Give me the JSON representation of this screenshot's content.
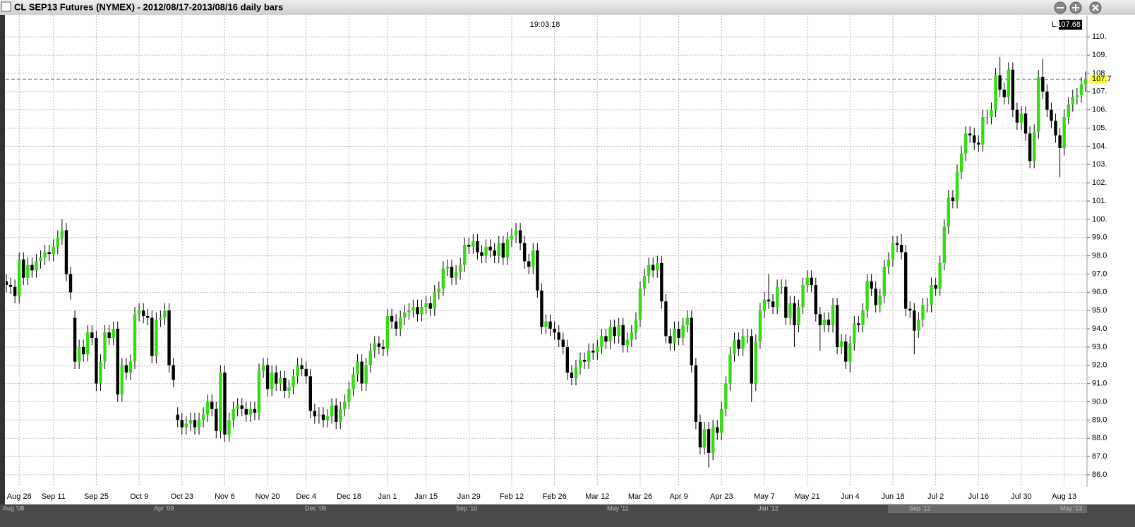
{
  "window_title": "CL SEP13 Futures (NYMEX) - 2012/08/17-2013/08/16 daily bars",
  "clock": "19:03:18",
  "last_prefix": "L:",
  "navigator_labels": [
    "Aug '08",
    "Apr '09",
    "Dec '09",
    "Sep '10",
    "May '11",
    "Jan '12",
    "Sep '12",
    "May '13"
  ],
  "chart_data": {
    "type": "candlestick",
    "up_color": "#33dd11",
    "down_color": "#000000",
    "grid": true,
    "last_value": 107.68,
    "last_tag": "107.7",
    "ylim": [
      85.34,
      111.17
    ],
    "yticks": [
      {
        "value": 86,
        "label": "86.0"
      },
      {
        "value": 87,
        "label": "87.0"
      },
      {
        "value": 88,
        "label": "88.0"
      },
      {
        "value": 89,
        "label": "89.0"
      },
      {
        "value": 90,
        "label": "90.0"
      },
      {
        "value": 91,
        "label": "91.0"
      },
      {
        "value": 92,
        "label": "92.0"
      },
      {
        "value": 93,
        "label": "93.0"
      },
      {
        "value": 94,
        "label": "94.0"
      },
      {
        "value": 95,
        "label": "95.0"
      },
      {
        "value": 96,
        "label": "96.0"
      },
      {
        "value": 97,
        "label": "97.0"
      },
      {
        "value": 98,
        "label": "98.0"
      },
      {
        "value": 99,
        "label": "99.0"
      },
      {
        "value": 100,
        "label": "100."
      },
      {
        "value": 101,
        "label": "101."
      },
      {
        "value": 102,
        "label": "102."
      },
      {
        "value": 103,
        "label": "103."
      },
      {
        "value": 104,
        "label": "104."
      },
      {
        "value": 105,
        "label": "105."
      },
      {
        "value": 106,
        "label": "106."
      },
      {
        "value": 107,
        "label": "107."
      },
      {
        "value": 108,
        "label": "108."
      },
      {
        "value": 109,
        "label": "109."
      },
      {
        "value": 110,
        "label": "110."
      }
    ],
    "categories": [
      null,
      null,
      null,
      "Aug 28",
      null,
      null,
      null,
      null,
      null,
      null,
      null,
      "Sep 11",
      null,
      null,
      null,
      null,
      null,
      null,
      null,
      null,
      null,
      "Sep 25",
      null,
      null,
      null,
      null,
      null,
      null,
      null,
      null,
      null,
      "Oct 9",
      null,
      null,
      null,
      null,
      null,
      null,
      null,
      null,
      null,
      "Oct 23",
      null,
      null,
      null,
      null,
      null,
      null,
      null,
      null,
      null,
      "Nov 6",
      null,
      null,
      null,
      null,
      null,
      null,
      null,
      null,
      null,
      "Nov 20",
      null,
      null,
      null,
      null,
      null,
      null,
      null,
      null,
      "Dec 4",
      null,
      null,
      null,
      null,
      null,
      null,
      null,
      null,
      null,
      "Dec 18",
      null,
      null,
      null,
      null,
      null,
      null,
      null,
      null,
      "Jan 1",
      null,
      null,
      null,
      null,
      null,
      null,
      null,
      null,
      "Jan 15",
      null,
      null,
      null,
      null,
      null,
      null,
      null,
      null,
      null,
      "Jan 29",
      null,
      null,
      null,
      null,
      null,
      null,
      null,
      null,
      null,
      "Feb 12",
      null,
      null,
      null,
      null,
      null,
      null,
      null,
      null,
      null,
      "Feb 26",
      null,
      null,
      null,
      null,
      null,
      null,
      null,
      null,
      null,
      "Mar 12",
      null,
      null,
      null,
      null,
      null,
      null,
      null,
      null,
      null,
      "Mar 26",
      null,
      null,
      null,
      null,
      null,
      null,
      null,
      null,
      "Apr 9",
      null,
      null,
      null,
      null,
      null,
      null,
      null,
      null,
      null,
      "Apr 23",
      null,
      null,
      null,
      null,
      null,
      null,
      null,
      null,
      null,
      "May 7",
      null,
      null,
      null,
      null,
      null,
      null,
      null,
      null,
      null,
      "May 21",
      null,
      null,
      null,
      null,
      null,
      null,
      null,
      null,
      null,
      "Jun 4",
      null,
      null,
      null,
      null,
      null,
      null,
      null,
      null,
      null,
      "Jun 18",
      null,
      null,
      null,
      null,
      null,
      null,
      null,
      null,
      null,
      "Jul 2",
      null,
      null,
      null,
      null,
      null,
      null,
      null,
      null,
      null,
      "Jul 16",
      null,
      null,
      null,
      null,
      null,
      null,
      null,
      null,
      null,
      "Jul 30",
      null,
      null,
      null,
      null,
      null,
      null,
      null,
      null,
      null,
      "Aug 13",
      null,
      null,
      null,
      null,
      null
    ],
    "open": [
      96.6,
      96.4,
      96.3,
      95.8,
      97.8,
      96.8,
      97.5,
      97.2,
      97.7,
      97.9,
      98.2,
      98.1,
      98.5,
      99.0,
      99.4,
      97.0,
      94.6,
      92.2,
      93.0,
      92.6,
      93.8,
      93.5,
      91.0,
      92.2,
      93.8,
      93.5,
      94.0,
      90.4,
      92.0,
      91.6,
      92.2,
      94.8,
      95.0,
      94.7,
      94.6,
      92.5,
      94.5,
      94.6,
      95.0,
      92.0,
      89.3,
      89.0,
      88.6,
      88.8,
      89.0,
      88.6,
      89.0,
      89.3,
      90.0,
      89.6,
      88.4,
      91.6,
      88.2,
      89.0,
      89.6,
      89.8,
      89.6,
      89.3,
      89.6,
      89.4,
      91.7,
      92.0,
      90.7,
      91.6,
      91.0,
      91.3,
      90.6,
      90.8,
      91.4,
      92.0,
      91.8,
      91.4,
      89.5,
      89.2,
      89.3,
      89.0,
      89.2,
      89.8,
      88.9,
      89.6,
      90.0,
      90.7,
      91.5,
      92.2,
      91.0,
      92.0,
      92.8,
      93.2,
      93.0,
      92.9,
      94.7,
      94.4,
      94.0,
      94.6,
      94.9,
      95.0,
      95.2,
      94.8,
      95.2,
      95.4,
      95.1,
      96.0,
      96.2,
      97.3,
      97.4,
      96.8,
      97.1,
      97.5,
      98.6,
      98.5,
      98.8,
      98.2,
      98.0,
      98.5,
      98.3,
      98.0,
      98.7,
      97.9,
      98.9,
      99.1,
      99.4,
      98.7,
      97.7,
      97.4,
      98.3,
      96.1,
      94.1,
      94.4,
      94.0,
      93.8,
      93.4,
      93.0,
      91.6,
      91.3,
      91.9,
      92.3,
      92.2,
      92.8,
      92.7,
      93.0,
      93.6,
      93.3,
      94.1,
      93.6,
      94.2,
      93.1,
      93.4,
      93.8,
      94.5,
      96.2,
      96.9,
      97.5,
      97.2,
      97.6,
      95.5,
      93.6,
      93.2,
      94.0,
      93.5,
      94.2,
      94.6,
      92.0,
      88.9,
      87.5,
      88.5,
      87.2,
      88.6,
      88.3,
      89.6,
      91.0,
      92.6,
      93.4,
      92.9,
      93.6,
      93.6,
      91.0,
      93.3,
      95.0,
      95.6,
      95.5,
      95.2,
      96.3,
      96.3,
      94.6,
      95.4,
      94.2,
      95.2,
      96.4,
      96.8,
      96.4,
      94.8,
      94.2,
      94.5,
      94.2,
      95.3,
      93.0,
      93.3,
      92.2,
      93.2,
      94.3,
      94.2,
      95.0,
      96.6,
      96.2,
      95.3,
      95.8,
      97.4,
      97.8,
      98.7,
      98.6,
      98.2,
      95.1,
      95.0,
      93.9,
      94.5,
      95.3,
      95.3,
      96.4,
      96.2,
      97.6,
      99.6,
      101.2,
      101.0,
      102.6,
      103.6,
      104.7,
      104.6,
      104.2,
      104.1,
      105.6,
      105.6,
      106.0,
      107.9,
      107.1,
      106.7,
      108.2,
      106.0,
      105.3,
      105.8,
      104.7,
      103.2,
      104.8,
      107.8,
      107.0,
      106.0,
      105.4,
      104.6,
      103.9,
      105.6,
      106.3,
      106.7,
      106.8,
      107.4
    ],
    "high": [
      97.0,
      96.8,
      96.7,
      98.2,
      98.2,
      97.9,
      97.9,
      98.1,
      98.3,
      98.6,
      98.6,
      98.9,
      99.4,
      100.0,
      99.8,
      97.4,
      95.0,
      93.4,
      93.4,
      94.2,
      94.2,
      93.9,
      92.6,
      94.2,
      94.2,
      94.4,
      94.4,
      92.4,
      92.4,
      92.6,
      95.2,
      95.4,
      95.4,
      95.1,
      95.0,
      94.9,
      95.0,
      95.4,
      95.4,
      92.4,
      89.7,
      89.4,
      89.2,
      89.4,
      89.4,
      89.4,
      89.7,
      90.4,
      90.4,
      90.0,
      92.0,
      92.0,
      89.4,
      90.0,
      90.2,
      90.2,
      90.0,
      90.0,
      90.0,
      92.1,
      92.4,
      92.4,
      92.0,
      92.0,
      91.7,
      91.7,
      91.2,
      91.8,
      92.4,
      92.4,
      92.2,
      91.8,
      89.9,
      89.7,
      89.7,
      89.6,
      90.2,
      90.2,
      90.0,
      90.4,
      91.1,
      91.9,
      92.6,
      92.6,
      92.4,
      93.2,
      93.6,
      93.6,
      93.4,
      95.1,
      95.1,
      94.8,
      95.0,
      95.3,
      95.4,
      95.6,
      95.6,
      95.6,
      95.8,
      95.8,
      96.4,
      96.6,
      97.7,
      97.8,
      97.8,
      97.5,
      97.9,
      99.0,
      99.0,
      99.2,
      99.2,
      98.6,
      98.9,
      98.9,
      98.7,
      99.1,
      99.1,
      99.3,
      99.5,
      99.8,
      99.8,
      99.1,
      98.1,
      98.7,
      98.7,
      96.5,
      94.8,
      94.8,
      94.4,
      94.2,
      93.8,
      93.4,
      92.0,
      92.3,
      92.7,
      92.7,
      93.2,
      93.2,
      93.4,
      94.0,
      94.0,
      94.5,
      94.5,
      94.6,
      94.6,
      93.8,
      94.2,
      94.9,
      96.6,
      97.3,
      97.9,
      97.9,
      98.0,
      98.0,
      95.9,
      94.0,
      94.4,
      94.4,
      94.6,
      95.0,
      95.0,
      92.4,
      89.3,
      88.9,
      88.9,
      89.0,
      89.0,
      90.0,
      91.4,
      93.0,
      93.8,
      93.8,
      94.0,
      94.0,
      94.0,
      93.7,
      95.4,
      96.0,
      97.0,
      95.9,
      96.7,
      96.7,
      96.7,
      95.8,
      95.8,
      95.6,
      96.8,
      97.2,
      97.2,
      96.8,
      95.2,
      94.9,
      94.9,
      95.7,
      95.7,
      93.7,
      93.7,
      93.6,
      94.7,
      94.7,
      95.4,
      97.0,
      97.0,
      96.6,
      96.2,
      97.8,
      98.2,
      99.1,
      99.1,
      99.2,
      98.6,
      95.5,
      95.4,
      94.9,
      95.7,
      95.7,
      96.8,
      96.8,
      98.0,
      100.0,
      101.6,
      101.6,
      103.0,
      104.0,
      105.1,
      105.1,
      105.0,
      104.6,
      106.0,
      106.0,
      106.4,
      108.3,
      108.9,
      107.5,
      108.6,
      108.6,
      106.4,
      106.2,
      106.2,
      105.1,
      105.2,
      108.2,
      108.8,
      107.4,
      106.4,
      105.8,
      105.0,
      106.0,
      106.7,
      107.1,
      107.2,
      107.8,
      108.1
    ],
    "low": [
      96.0,
      95.9,
      95.4,
      95.4,
      96.4,
      96.4,
      96.8,
      96.8,
      97.3,
      97.5,
      97.7,
      97.7,
      98.1,
      98.6,
      96.6,
      95.6,
      91.8,
      91.8,
      92.2,
      92.2,
      93.1,
      90.6,
      90.6,
      91.8,
      93.1,
      93.1,
      90.0,
      90.0,
      91.2,
      91.2,
      91.8,
      94.4,
      94.3,
      94.2,
      92.1,
      92.1,
      94.1,
      94.2,
      91.6,
      90.8,
      88.6,
      88.2,
      88.2,
      88.4,
      88.2,
      88.2,
      88.6,
      88.9,
      89.2,
      88.0,
      88.0,
      87.8,
      87.8,
      88.6,
      89.2,
      89.2,
      88.9,
      88.9,
      89.0,
      89.0,
      91.3,
      90.3,
      90.3,
      90.6,
      90.6,
      90.2,
      90.2,
      90.4,
      91.0,
      91.4,
      91.0,
      89.1,
      88.8,
      88.8,
      88.6,
      88.6,
      88.8,
      88.5,
      88.5,
      89.2,
      89.6,
      90.3,
      91.1,
      90.6,
      90.6,
      91.6,
      92.4,
      92.6,
      92.5,
      92.5,
      94.0,
      93.6,
      93.6,
      94.2,
      94.5,
      94.6,
      94.4,
      94.4,
      94.8,
      94.7,
      94.7,
      95.6,
      95.8,
      96.9,
      96.4,
      96.4,
      96.7,
      97.1,
      98.1,
      98.1,
      97.8,
      97.6,
      97.6,
      97.9,
      97.6,
      97.6,
      97.5,
      97.5,
      98.5,
      98.7,
      98.3,
      97.3,
      97.0,
      97.0,
      95.7,
      93.7,
      93.7,
      93.6,
      93.4,
      93.0,
      92.6,
      91.2,
      90.9,
      90.9,
      91.5,
      91.8,
      91.8,
      92.3,
      92.3,
      92.6,
      92.9,
      92.9,
      93.2,
      93.2,
      92.7,
      92.7,
      93.0,
      93.4,
      94.1,
      95.8,
      96.5,
      96.8,
      96.8,
      95.1,
      93.2,
      92.8,
      92.8,
      93.1,
      93.1,
      93.8,
      91.6,
      88.5,
      87.1,
      87.1,
      86.4,
      86.8,
      87.9,
      87.9,
      89.2,
      90.6,
      92.2,
      92.5,
      92.5,
      93.2,
      90.0,
      90.6,
      92.9,
      94.6,
      95.1,
      94.8,
      94.8,
      95.9,
      94.2,
      94.2,
      93.0,
      93.8,
      94.8,
      96.0,
      96.0,
      94.4,
      92.8,
      93.8,
      93.8,
      93.8,
      92.6,
      92.6,
      91.8,
      91.6,
      92.8,
      93.8,
      93.8,
      94.6,
      95.8,
      94.9,
      94.9,
      95.4,
      97.0,
      97.4,
      98.2,
      97.8,
      94.7,
      94.6,
      92.6,
      93.5,
      94.1,
      94.9,
      94.9,
      95.8,
      95.8,
      97.2,
      99.2,
      100.6,
      100.6,
      102.2,
      103.2,
      104.2,
      103.8,
      103.7,
      103.7,
      105.2,
      105.2,
      105.6,
      106.7,
      106.3,
      106.3,
      105.6,
      104.9,
      104.9,
      104.3,
      102.8,
      102.8,
      104.4,
      106.6,
      105.6,
      105.0,
      104.2,
      102.3,
      103.5,
      105.2,
      105.9,
      106.3,
      106.4,
      107.0
    ],
    "close": [
      96.4,
      96.3,
      95.8,
      97.8,
      96.8,
      97.5,
      97.2,
      97.7,
      97.9,
      98.2,
      98.1,
      98.5,
      99.0,
      99.4,
      97.0,
      96.0,
      92.2,
      93.0,
      92.6,
      93.8,
      93.5,
      91.0,
      92.2,
      93.8,
      93.5,
      94.0,
      90.4,
      92.0,
      91.6,
      92.2,
      94.8,
      95.0,
      94.7,
      94.6,
      92.5,
      94.5,
      94.6,
      95.0,
      92.0,
      91.2,
      89.0,
      88.6,
      88.8,
      89.0,
      88.6,
      89.0,
      89.3,
      90.0,
      89.6,
      88.4,
      91.6,
      88.2,
      89.0,
      89.6,
      89.8,
      89.6,
      89.3,
      89.6,
      89.4,
      91.7,
      92.0,
      90.7,
      91.6,
      91.0,
      91.3,
      90.6,
      90.8,
      91.4,
      92.0,
      91.8,
      91.4,
      89.5,
      89.2,
      89.3,
      89.0,
      89.2,
      89.8,
      88.9,
      89.6,
      90.0,
      90.7,
      91.5,
      92.2,
      91.0,
      92.0,
      92.8,
      93.2,
      93.0,
      92.9,
      94.7,
      94.4,
      94.0,
      94.6,
      94.9,
      95.0,
      95.2,
      94.8,
      95.2,
      95.4,
      95.1,
      96.0,
      96.2,
      97.3,
      97.4,
      96.8,
      97.1,
      97.5,
      98.6,
      98.5,
      98.8,
      98.2,
      98.0,
      98.5,
      98.3,
      98.0,
      98.7,
      97.9,
      98.9,
      99.1,
      99.4,
      98.7,
      97.7,
      97.4,
      98.3,
      96.1,
      94.1,
      94.4,
      94.0,
      93.8,
      93.4,
      93.0,
      91.6,
      91.3,
      91.9,
      92.3,
      92.2,
      92.8,
      92.7,
      93.0,
      93.6,
      93.3,
      94.1,
      93.6,
      94.2,
      93.1,
      93.4,
      93.8,
      94.5,
      96.2,
      96.9,
      97.5,
      97.2,
      97.6,
      95.5,
      93.6,
      93.2,
      94.0,
      93.5,
      94.2,
      94.6,
      92.0,
      88.9,
      87.5,
      88.5,
      87.2,
      88.6,
      88.3,
      89.6,
      91.0,
      92.6,
      93.4,
      92.9,
      93.6,
      93.6,
      91.0,
      93.3,
      95.0,
      95.6,
      95.5,
      95.2,
      96.3,
      96.3,
      94.6,
      95.4,
      94.2,
      95.2,
      96.4,
      96.8,
      96.4,
      94.8,
      94.2,
      94.5,
      94.2,
      95.3,
      93.0,
      93.3,
      92.2,
      93.2,
      94.3,
      94.2,
      95.0,
      96.6,
      96.2,
      95.3,
      95.8,
      97.4,
      97.8,
      98.7,
      98.6,
      98.2,
      95.1,
      95.0,
      93.9,
      94.5,
      95.3,
      95.3,
      96.4,
      96.2,
      97.6,
      99.6,
      101.2,
      101.0,
      102.6,
      103.6,
      104.7,
      104.6,
      104.2,
      104.1,
      105.6,
      105.6,
      106.0,
      107.9,
      107.1,
      106.7,
      108.2,
      106.0,
      105.3,
      105.8,
      104.7,
      103.2,
      104.8,
      107.8,
      107.0,
      106.0,
      105.4,
      104.6,
      103.9,
      105.6,
      106.3,
      106.7,
      106.8,
      107.4,
      107.7
    ]
  }
}
